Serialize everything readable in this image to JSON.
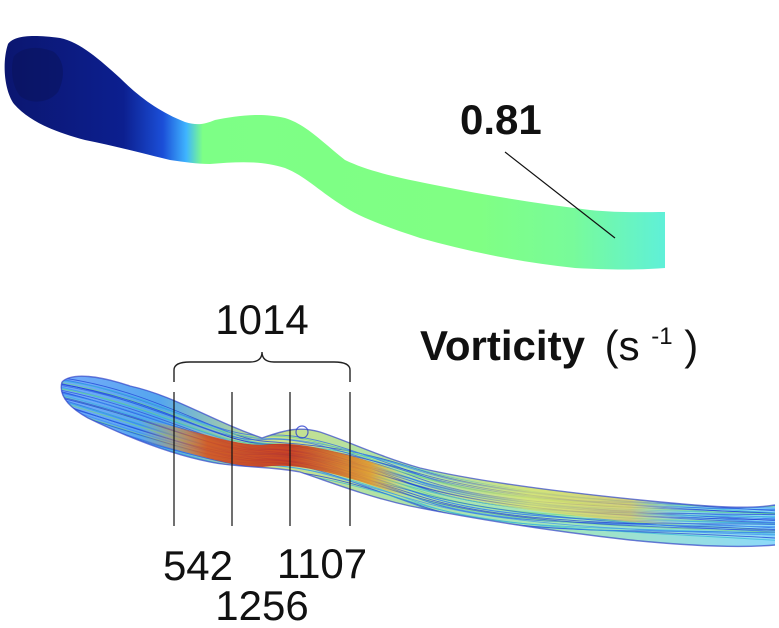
{
  "top_panel": {
    "value_label": "0.81"
  },
  "bottom_panel": {
    "bracket_value": "1014",
    "measurements": [
      "542",
      "1256",
      "1107"
    ]
  },
  "quantity_label": "Vorticity",
  "unit_label": {
    "open": "(s",
    "exponent": "-1",
    "close": ")"
  },
  "colors": {
    "low": "#0a1a86",
    "mid_blue": "#3a86ff",
    "green": "#7dff82",
    "cyan": "#6cf5d0",
    "streamline_blue": "#2b4fd8",
    "streamline_hot": "#d8431a"
  }
}
